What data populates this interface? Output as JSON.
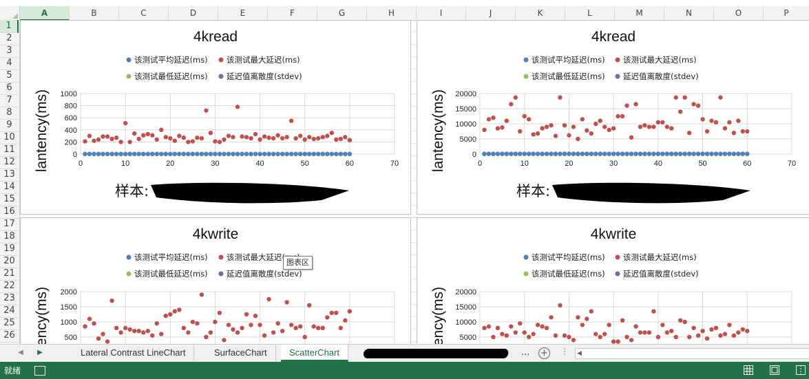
{
  "columns": [
    "A",
    "B",
    "C",
    "D",
    "E",
    "F",
    "G",
    "H",
    "I",
    "J",
    "K",
    "L",
    "M",
    "N",
    "O",
    "P"
  ],
  "rows": [
    "1",
    "2",
    "3",
    "4",
    "5",
    "6",
    "7",
    "8",
    "9",
    "10",
    "11",
    "12",
    "13",
    "14",
    "15",
    "16",
    "17",
    "18",
    "19",
    "20",
    "21",
    "22",
    "23",
    "24",
    "25",
    "26"
  ],
  "legend": {
    "avg": "该测试平均延迟(ms)",
    "max": "该测试最大延迟(ms)",
    "min": "该测试最低延迟(ms)",
    "stdev": "延迟值离散度(stdev)"
  },
  "colors": {
    "avg": "#4f81bd",
    "max": "#c0504d",
    "min": "#9bbb59",
    "stdev": "#8064a2",
    "accent": "#217346"
  },
  "tooltip": "图表区",
  "chart_data": [
    {
      "type": "scatter",
      "title": "4kread",
      "ylabel": "lantency(ms)",
      "xlabel": "样本:",
      "xlim": [
        0,
        70
      ],
      "xticks": [
        0,
        10,
        20,
        30,
        40,
        50,
        60,
        70
      ],
      "ylim": [
        0,
        1000
      ],
      "yticks": [
        0,
        200,
        400,
        600,
        800,
        1000
      ],
      "x": [
        1,
        2,
        3,
        4,
        5,
        6,
        7,
        8,
        9,
        10,
        11,
        12,
        13,
        14,
        15,
        16,
        17,
        18,
        19,
        20,
        21,
        22,
        23,
        24,
        25,
        26,
        27,
        28,
        29,
        30,
        31,
        32,
        33,
        34,
        35,
        36,
        37,
        38,
        39,
        40,
        41,
        42,
        43,
        44,
        45,
        46,
        47,
        48,
        49,
        50,
        51,
        52,
        53,
        54,
        55,
        56,
        57,
        58,
        59,
        60
      ],
      "series": [
        {
          "name": "该测试最大延迟(ms)",
          "values": [
            210,
            300,
            220,
            240,
            290,
            290,
            250,
            270,
            200,
            510,
            200,
            340,
            250,
            310,
            330,
            310,
            240,
            400,
            280,
            260,
            220,
            300,
            270,
            200,
            210,
            270,
            260,
            720,
            350,
            210,
            200,
            240,
            300,
            280,
            780,
            290,
            280,
            260,
            330,
            240,
            290,
            270,
            260,
            310,
            260,
            280,
            550,
            260,
            300,
            240,
            280,
            250,
            260,
            280,
            300,
            350,
            240,
            250,
            280,
            230
          ]
        },
        {
          "name": "该测试平均延迟(ms)",
          "values": [
            2,
            2,
            2,
            2,
            2,
            2,
            2,
            2,
            2,
            2,
            2,
            2,
            2,
            2,
            2,
            2,
            2,
            2,
            2,
            2,
            2,
            2,
            2,
            2,
            2,
            2,
            2,
            2,
            2,
            2,
            2,
            2,
            2,
            2,
            2,
            2,
            2,
            2,
            2,
            2,
            2,
            2,
            2,
            2,
            2,
            2,
            2,
            2,
            2,
            2,
            2,
            2,
            2,
            2,
            2,
            2,
            2,
            2,
            2,
            2
          ]
        },
        {
          "name": "该测试最低延迟(ms)",
          "values": [
            0,
            0,
            0,
            0,
            0,
            0,
            0,
            0,
            0,
            0,
            0,
            0,
            0,
            0,
            0,
            0,
            0,
            0,
            0,
            0,
            0,
            0,
            0,
            0,
            0,
            0,
            0,
            0,
            0,
            0,
            0,
            0,
            0,
            0,
            0,
            0,
            0,
            0,
            0,
            0,
            0,
            0,
            0,
            0,
            0,
            0,
            0,
            0,
            0,
            0,
            0,
            0,
            0,
            0,
            0,
            0,
            0,
            0,
            0,
            0
          ]
        },
        {
          "name": "延迟值离散度(stdev)",
          "values": [
            1,
            1,
            1,
            1,
            1,
            1,
            1,
            1,
            1,
            1,
            1,
            1,
            1,
            1,
            1,
            1,
            1,
            1,
            1,
            1,
            1,
            1,
            1,
            1,
            1,
            1,
            1,
            1,
            1,
            1,
            1,
            1,
            1,
            1,
            1,
            1,
            1,
            1,
            1,
            1,
            1,
            1,
            1,
            1,
            1,
            1,
            1,
            1,
            1,
            1,
            1,
            1,
            1,
            1,
            1,
            1,
            1,
            1,
            1,
            1
          ]
        }
      ]
    },
    {
      "type": "scatter",
      "title": "4kread",
      "ylabel": "lantency(ms)",
      "xlabel": "样本:",
      "xlim": [
        0,
        70
      ],
      "xticks": [
        0,
        10,
        20,
        30,
        40,
        50,
        60,
        70
      ],
      "ylim": [
        0,
        20000
      ],
      "yticks": [
        0,
        5000,
        10000,
        15000,
        20000
      ],
      "x": [
        1,
        2,
        3,
        4,
        5,
        6,
        7,
        8,
        9,
        10,
        11,
        12,
        13,
        14,
        15,
        16,
        17,
        18,
        19,
        20,
        21,
        22,
        23,
        24,
        25,
        26,
        27,
        28,
        29,
        30,
        31,
        32,
        33,
        34,
        35,
        36,
        37,
        38,
        39,
        40,
        41,
        42,
        43,
        44,
        45,
        46,
        47,
        48,
        49,
        50,
        51,
        52,
        53,
        54,
        55,
        56,
        57,
        58,
        59,
        60
      ],
      "series": [
        {
          "name": "该测试最大延迟(ms)",
          "values": [
            8000,
            11500,
            12000,
            8500,
            8800,
            11000,
            16500,
            18700,
            7500,
            12500,
            11500,
            6500,
            6800,
            8500,
            9000,
            9500,
            6000,
            18700,
            9500,
            6200,
            9000,
            5000,
            11500,
            7800,
            6800,
            10000,
            11000,
            9000,
            8000,
            8500,
            12500,
            12500,
            16000,
            5500,
            16500,
            9000,
            9500,
            9000,
            9000,
            10500,
            10500,
            9000,
            8500,
            18700,
            14000,
            18700,
            7000,
            16500,
            16000,
            11500,
            7500,
            11000,
            10500,
            18700,
            8500,
            10500,
            7000,
            11000,
            7500,
            7500
          ]
        },
        {
          "name": "该测试平均延迟(ms)",
          "values": [
            100,
            100,
            100,
            100,
            100,
            100,
            100,
            100,
            100,
            100,
            100,
            100,
            100,
            100,
            100,
            100,
            100,
            100,
            100,
            100,
            100,
            100,
            100,
            100,
            100,
            100,
            100,
            100,
            100,
            100,
            100,
            100,
            100,
            100,
            100,
            100,
            100,
            100,
            100,
            100,
            100,
            100,
            100,
            100,
            100,
            100,
            100,
            100,
            100,
            100,
            100,
            100,
            100,
            100,
            100,
            100,
            100,
            100,
            100,
            100
          ]
        },
        {
          "name": "该测试最低延迟(ms)",
          "values": [
            0,
            0,
            0,
            0,
            0,
            0,
            0,
            0,
            0,
            0,
            0,
            0,
            0,
            0,
            0,
            0,
            0,
            0,
            0,
            0,
            0,
            0,
            0,
            0,
            0,
            0,
            0,
            0,
            0,
            0,
            0,
            0,
            0,
            0,
            0,
            0,
            0,
            0,
            0,
            0,
            0,
            0,
            0,
            0,
            0,
            0,
            0,
            0,
            0,
            0,
            0,
            0,
            0,
            0,
            0,
            0,
            0,
            0,
            0,
            0
          ]
        },
        {
          "name": "延迟值离散度(stdev)",
          "values": [
            50,
            50,
            50,
            50,
            50,
            50,
            50,
            50,
            50,
            50,
            50,
            50,
            50,
            50,
            50,
            50,
            50,
            50,
            50,
            50,
            50,
            50,
            50,
            50,
            50,
            50,
            50,
            50,
            50,
            50,
            50,
            50,
            50,
            50,
            50,
            50,
            50,
            50,
            50,
            50,
            50,
            50,
            50,
            50,
            50,
            50,
            50,
            50,
            50,
            50,
            50,
            50,
            50,
            50,
            50,
            50,
            50,
            50,
            50,
            50
          ]
        }
      ]
    },
    {
      "type": "scatter",
      "title": "4kwrite",
      "ylabel": "lantency(ms)",
      "xlim": [
        0,
        70
      ],
      "ylim": [
        0,
        2000
      ],
      "yticks": [
        500,
        1000,
        1500,
        2000
      ],
      "x": [
        1,
        2,
        3,
        4,
        5,
        6,
        7,
        8,
        9,
        10,
        11,
        12,
        13,
        14,
        15,
        16,
        17,
        18,
        19,
        20,
        21,
        22,
        23,
        24,
        25,
        26,
        27,
        28,
        29,
        30,
        31,
        32,
        33,
        34,
        35,
        36,
        37,
        38,
        39,
        40,
        41,
        42,
        43,
        44,
        45,
        46,
        47,
        48,
        49,
        50,
        51,
        52,
        53,
        54,
        55,
        56,
        57,
        58,
        59,
        60
      ],
      "series": [
        {
          "name": "该测试最大延迟(ms)",
          "values": [
            850,
            1100,
            950,
            450,
            600,
            350,
            1700,
            800,
            650,
            800,
            750,
            700,
            700,
            650,
            700,
            550,
            950,
            600,
            1200,
            1250,
            1350,
            1400,
            800,
            650,
            1000,
            950,
            1900,
            500,
            650,
            1000,
            1300,
            400,
            900,
            750,
            650,
            800,
            1250,
            900,
            1200,
            900,
            550,
            1750,
            650,
            950,
            700,
            1650,
            900,
            800,
            850,
            500,
            1550,
            850,
            800,
            800,
            1150,
            1300,
            1300,
            800,
            1050,
            1350
          ]
        }
      ]
    },
    {
      "type": "scatter",
      "title": "4kwrite",
      "ylabel": "lantency(ms)",
      "xlim": [
        0,
        70
      ],
      "ylim": [
        0,
        20000
      ],
      "yticks": [
        5000,
        10000,
        15000,
        20000
      ],
      "x": [
        1,
        2,
        3,
        4,
        5,
        6,
        7,
        8,
        9,
        10,
        11,
        12,
        13,
        14,
        15,
        16,
        17,
        18,
        19,
        20,
        21,
        22,
        23,
        24,
        25,
        26,
        27,
        28,
        29,
        30,
        31,
        32,
        33,
        34,
        35,
        36,
        37,
        38,
        39,
        40,
        41,
        42,
        43,
        44,
        45,
        46,
        47,
        48,
        49,
        50,
        51,
        52,
        53,
        54,
        55,
        56,
        57,
        58,
        59,
        60
      ],
      "series": [
        {
          "name": "该测试最大延迟(ms)",
          "values": [
            8000,
            8500,
            5000,
            8000,
            6000,
            5500,
            8500,
            6500,
            9500,
            6500,
            5000,
            6000,
            9000,
            8500,
            8000,
            11500,
            5500,
            15500,
            5500,
            5000,
            4000,
            11500,
            9000,
            11000,
            13500,
            6000,
            5000,
            6000,
            9000,
            3500,
            3500,
            10500,
            5000,
            4000,
            8500,
            6500,
            6500,
            6500,
            13500,
            5000,
            9000,
            6500,
            7000,
            5000,
            10500,
            10000,
            5000,
            8000,
            5500,
            7000,
            4500,
            7500,
            8000,
            5500,
            6000,
            9000,
            5500,
            6500,
            7500,
            7000
          ]
        }
      ]
    }
  ],
  "tabs": [
    "Lateral Contrast LineChart",
    "SurfaceChart",
    "ScatterChart"
  ],
  "tab_ellipsis": "...",
  "status": {
    "ready": "就绪"
  }
}
